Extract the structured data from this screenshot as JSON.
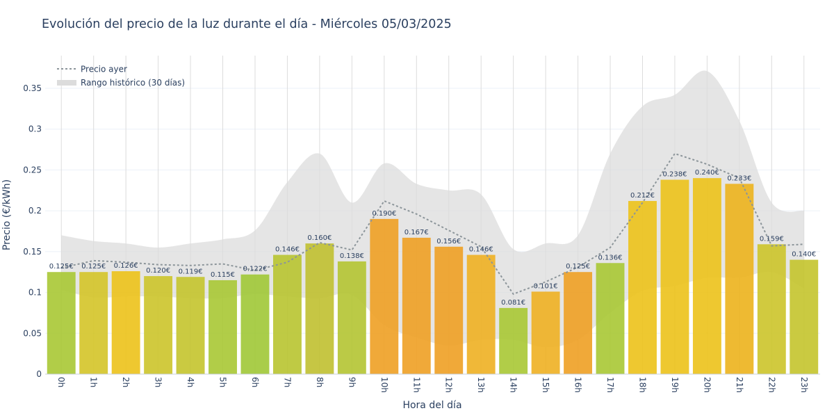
{
  "chart_data": {
    "type": "bar",
    "title": "Evolución del precio de la luz durante el día - Miércoles 05/03/2025",
    "xlabel": "Hora del día",
    "ylabel": "Precio (€/kWh)",
    "ylim": [
      0,
      0.39
    ],
    "yticks": [
      0,
      0.05,
      0.1,
      0.15,
      0.2,
      0.25,
      0.3,
      0.35
    ],
    "ytick_labels": [
      "0",
      "0.05",
      "0.1",
      "0.15",
      "0.2",
      "0.25",
      "0.3",
      "0.35"
    ],
    "grid": true,
    "legend_position": "top-left",
    "categories": [
      "0h",
      "1h",
      "2h",
      "3h",
      "4h",
      "5h",
      "6h",
      "7h",
      "8h",
      "9h",
      "10h",
      "11h",
      "12h",
      "13h",
      "14h",
      "15h",
      "16h",
      "17h",
      "18h",
      "19h",
      "20h",
      "21h",
      "22h",
      "23h"
    ],
    "values": [
      0.125,
      0.125,
      0.126,
      0.12,
      0.119,
      0.115,
      0.122,
      0.146,
      0.16,
      0.138,
      0.19,
      0.167,
      0.156,
      0.146,
      0.081,
      0.101,
      0.125,
      0.136,
      0.212,
      0.238,
      0.24,
      0.233,
      0.159,
      0.14
    ],
    "value_labels": [
      "0.125€",
      "0.125€",
      "0.126€",
      "0.120€",
      "0.119€",
      "0.115€",
      "0.122€",
      "0.146€",
      "0.160€",
      "0.138€",
      "0.190€",
      "0.167€",
      "0.156€",
      "0.146€",
      "0.081€",
      "0.101€",
      "0.125€",
      "0.136€",
      "0.212€",
      "0.238€",
      "0.240€",
      "0.233€",
      "0.159€",
      "0.140€"
    ],
    "bar_colors": [
      "#a8c834",
      "#d4c428",
      "#ecc21a",
      "#ccc42a",
      "#c4c42c",
      "#a8c834",
      "#a0c836",
      "#b8c430",
      "#c0c030",
      "#b4c432",
      "#eea024",
      "#eea024",
      "#eea024",
      "#eeb022",
      "#a8c834",
      "#eeb022",
      "#eea024",
      "#a8c834",
      "#ecc21a",
      "#ecc21a",
      "#ecc21a",
      "#ecb21c",
      "#ccc42a",
      "#c4c42c"
    ],
    "series": [
      {
        "name": "Precio ayer",
        "type": "line",
        "color": "#8c959a",
        "values": [
          0.13,
          0.139,
          0.137,
          0.134,
          0.133,
          0.135,
          0.127,
          0.137,
          0.161,
          0.152,
          0.212,
          0.196,
          0.176,
          0.156,
          0.098,
          0.113,
          0.131,
          0.155,
          0.21,
          0.27,
          0.257,
          0.24,
          0.157,
          0.159
        ]
      },
      {
        "name": "Rango histórico (30 días)",
        "type": "range",
        "color": "#dcdcdc",
        "upper": [
          0.17,
          0.163,
          0.16,
          0.155,
          0.16,
          0.165,
          0.176,
          0.235,
          0.27,
          0.21,
          0.258,
          0.233,
          0.225,
          0.22,
          0.153,
          0.16,
          0.17,
          0.27,
          0.328,
          0.342,
          0.371,
          0.31,
          0.21,
          0.2
        ],
        "lower": [
          0.103,
          0.094,
          0.095,
          0.095,
          0.093,
          0.093,
          0.098,
          0.095,
          0.093,
          0.097,
          0.06,
          0.045,
          0.035,
          0.042,
          0.042,
          0.033,
          0.042,
          0.075,
          0.102,
          0.108,
          0.118,
          0.118,
          0.125,
          0.105
        ]
      }
    ]
  }
}
